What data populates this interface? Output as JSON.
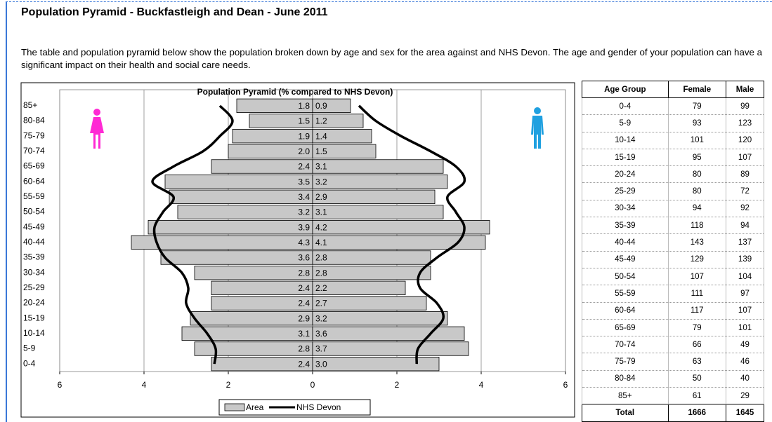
{
  "header": {
    "title": "Population Pyramid - Buckfastleigh and Dean - June 2011"
  },
  "intro": "The table and population pyramid below show the population broken down by age and sex for the area against and NHS Devon. The age and gender of your population can have a significant impact on their health and social care needs.",
  "chart_data": {
    "type": "pyramid",
    "title": "Population Pyramid (% compared to NHS Devon)",
    "categories": [
      "0-4",
      "5-9",
      "10-14",
      "15-19",
      "20-24",
      "25-29",
      "30-34",
      "35-39",
      "40-44",
      "45-49",
      "50-54",
      "55-59",
      "60-64",
      "65-69",
      "70-74",
      "75-79",
      "80-84",
      "85+"
    ],
    "series": [
      {
        "name": "Area",
        "color": "#c8c8c8",
        "left_values": [
          2.4,
          2.8,
          3.1,
          2.9,
          2.4,
          2.4,
          2.8,
          3.6,
          4.3,
          3.9,
          3.2,
          3.4,
          3.5,
          2.4,
          2.0,
          1.9,
          1.5,
          1.8
        ],
        "left_value_labels": [
          "2.4",
          "2.8",
          "3.1",
          "2.9",
          "2.4",
          "2.4",
          "2.8",
          "3.6",
          "4.3",
          "3.9",
          "3.2",
          "3.4",
          "3.5",
          "2.4",
          "2.0",
          "1.9",
          "1.5",
          "1.8"
        ],
        "right_values": [
          3.0,
          3.7,
          3.6,
          3.2,
          2.7,
          2.2,
          2.8,
          2.8,
          4.1,
          4.2,
          3.1,
          2.9,
          3.2,
          3.1,
          1.5,
          1.4,
          1.2,
          0.9
        ],
        "right_value_labels": [
          "3.0",
          "3.7",
          "3.6",
          "3.2",
          "2.7",
          "2.2",
          "2.8",
          "2.8",
          "4.1",
          "4.2",
          "3.1",
          "2.9",
          "3.2",
          "3.1",
          "1.5",
          "1.4",
          "1.2",
          "0.9"
        ]
      },
      {
        "name": "NHS Devon",
        "color": "#000000",
        "left_values": [
          2.33,
          2.3,
          2.5,
          2.8,
          3.0,
          2.95,
          3.1,
          3.5,
          3.7,
          3.75,
          3.55,
          3.3,
          3.8,
          3.3,
          2.6,
          2.2,
          1.9,
          2.2
        ],
        "right_values": [
          2.47,
          2.5,
          2.8,
          3.1,
          2.95,
          2.55,
          2.55,
          2.95,
          3.45,
          3.6,
          3.4,
          3.2,
          3.6,
          3.4,
          2.8,
          2.1,
          1.5,
          1.1
        ]
      }
    ],
    "xlim": [
      -6,
      6
    ],
    "xticks": [
      {
        "value": -6,
        "label": "6"
      },
      {
        "value": -4,
        "label": "4"
      },
      {
        "value": -2,
        "label": "2"
      },
      0,
      2,
      4,
      6
    ],
    "grid": true
  },
  "table": {
    "header": [
      "Age Group",
      "Female",
      "Male"
    ],
    "rows": [
      [
        "0-4",
        79,
        99
      ],
      [
        "5-9",
        93,
        123
      ],
      [
        "10-14",
        101,
        120
      ],
      [
        "15-19",
        95,
        107
      ],
      [
        "20-24",
        80,
        89
      ],
      [
        "25-29",
        80,
        72
      ],
      [
        "30-34",
        94,
        92
      ],
      [
        "35-39",
        118,
        94
      ],
      [
        "40-44",
        143,
        137
      ],
      [
        "45-49",
        129,
        139
      ],
      [
        "50-54",
        107,
        104
      ],
      [
        "55-59",
        111,
        97
      ],
      [
        "60-64",
        117,
        107
      ],
      [
        "65-69",
        79,
        101
      ],
      [
        "70-74",
        66,
        49
      ],
      [
        "75-79",
        63,
        46
      ],
      [
        "80-84",
        50,
        40
      ],
      [
        "85+",
        61,
        29
      ]
    ],
    "total": [
      "Total",
      1666,
      1645
    ]
  }
}
